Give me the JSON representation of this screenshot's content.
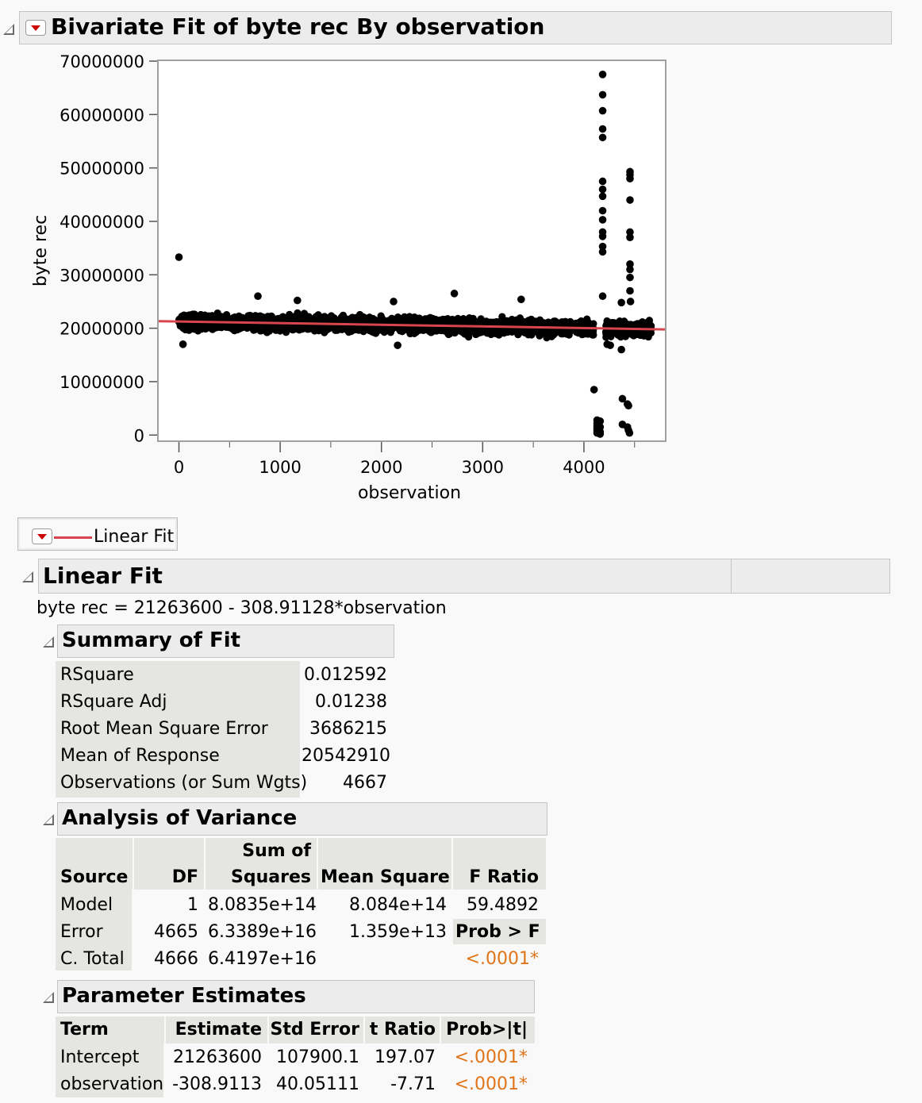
{
  "report": {
    "title": "Bivariate Fit of byte rec By observation",
    "legend_label": "Linear Fit",
    "fit_line_color": "#d9454f"
  },
  "chart_data": {
    "type": "scatter",
    "xlabel": "observation",
    "ylabel": "byte rec",
    "xlim": [
      -200,
      4800
    ],
    "ylim": [
      -1000000,
      70000000
    ],
    "xticks": [
      "0",
      "1000",
      "2000",
      "3000",
      "4000"
    ],
    "xtick_values": [
      0,
      1000,
      2000,
      3000,
      4000
    ],
    "yticks": [
      "0",
      "10000000",
      "20000000",
      "30000000",
      "40000000",
      "50000000",
      "60000000",
      "70000000"
    ],
    "ytick_values": [
      0,
      10000000,
      20000000,
      30000000,
      40000000,
      50000000,
      60000000,
      70000000
    ],
    "n_points": 4667,
    "band": {
      "x_from": 0,
      "x_to": 4667,
      "y_low": 18000000,
      "y_high": 23500000
    },
    "fit": {
      "intercept": 21263600,
      "slope": -308.91128
    },
    "outliers": [
      {
        "x": 0,
        "y": 33300000
      },
      {
        "x": 40,
        "y": 17000000
      },
      {
        "x": 780,
        "y": 26000000
      },
      {
        "x": 1170,
        "y": 25200000
      },
      {
        "x": 2120,
        "y": 25000000
      },
      {
        "x": 2160,
        "y": 16800000
      },
      {
        "x": 2720,
        "y": 26500000
      },
      {
        "x": 3380,
        "y": 25400000
      },
      {
        "x": 4100,
        "y": 8500000
      },
      {
        "x": 4130,
        "y": 2800000
      },
      {
        "x": 4130,
        "y": 2200000
      },
      {
        "x": 4130,
        "y": 1700000
      },
      {
        "x": 4130,
        "y": 1200000
      },
      {
        "x": 4130,
        "y": 800000
      },
      {
        "x": 4130,
        "y": 400000
      },
      {
        "x": 4160,
        "y": 2600000
      },
      {
        "x": 4160,
        "y": 1500000
      },
      {
        "x": 4160,
        "y": 600000
      },
      {
        "x": 4160,
        "y": 200000
      },
      {
        "x": 4185,
        "y": 67500000
      },
      {
        "x": 4185,
        "y": 63700000
      },
      {
        "x": 4185,
        "y": 60700000
      },
      {
        "x": 4185,
        "y": 57300000
      },
      {
        "x": 4185,
        "y": 55700000
      },
      {
        "x": 4185,
        "y": 47500000
      },
      {
        "x": 4185,
        "y": 46000000
      },
      {
        "x": 4185,
        "y": 44700000
      },
      {
        "x": 4185,
        "y": 42000000
      },
      {
        "x": 4185,
        "y": 40300000
      },
      {
        "x": 4185,
        "y": 38000000
      },
      {
        "x": 4185,
        "y": 37200000
      },
      {
        "x": 4185,
        "y": 35300000
      },
      {
        "x": 4185,
        "y": 34300000
      },
      {
        "x": 4185,
        "y": 26000000
      },
      {
        "x": 4370,
        "y": 16000000
      },
      {
        "x": 4370,
        "y": 24800000
      },
      {
        "x": 4380,
        "y": 6800000
      },
      {
        "x": 4380,
        "y": 2000000
      },
      {
        "x": 4430,
        "y": 5800000
      },
      {
        "x": 4440,
        "y": 5500000
      },
      {
        "x": 4430,
        "y": 1500000
      },
      {
        "x": 4440,
        "y": 900000
      },
      {
        "x": 4450,
        "y": 400000
      },
      {
        "x": 4455,
        "y": 49300000
      },
      {
        "x": 4455,
        "y": 48700000
      },
      {
        "x": 4455,
        "y": 48000000
      },
      {
        "x": 4455,
        "y": 44000000
      },
      {
        "x": 4455,
        "y": 38000000
      },
      {
        "x": 4455,
        "y": 37000000
      },
      {
        "x": 4455,
        "y": 32000000
      },
      {
        "x": 4455,
        "y": 31000000
      },
      {
        "x": 4455,
        "y": 29500000
      },
      {
        "x": 4455,
        "y": 27000000
      },
      {
        "x": 4460,
        "y": 25000000
      },
      {
        "x": 4230,
        "y": 17000000
      },
      {
        "x": 4260,
        "y": 16800000
      }
    ]
  },
  "linear_fit": {
    "title": "Linear Fit",
    "equation": "byte rec = 21263600 - 308.91128*observation"
  },
  "summary_of_fit": {
    "title": "Summary of Fit",
    "rows": [
      {
        "label": "RSquare",
        "value": "0.012592"
      },
      {
        "label": "RSquare Adj",
        "value": "0.01238"
      },
      {
        "label": "Root Mean Square Error",
        "value": "3686215"
      },
      {
        "label": "Mean of Response",
        "value": "20542910"
      },
      {
        "label": "Observations (or Sum Wgts)",
        "value": "4667"
      }
    ]
  },
  "anova": {
    "title": "Analysis of Variance",
    "headers": {
      "source": "Source",
      "df": "DF",
      "ss_top": "Sum of",
      "ss_bottom": "Squares",
      "ms": "Mean Square",
      "f": "F Ratio"
    },
    "rows": [
      {
        "source": "Model",
        "df": "1",
        "ss": "8.0835e+14",
        "ms": "8.084e+14",
        "f": "59.4892"
      },
      {
        "source": "Error",
        "df": "4665",
        "ss": "6.3389e+16",
        "ms": "1.359e+13",
        "f": "Prob > F"
      },
      {
        "source": "C. Total",
        "df": "4666",
        "ss": "6.4197e+16",
        "ms": "",
        "f": "<.0001*"
      }
    ]
  },
  "parameter_estimates": {
    "title": "Parameter Estimates",
    "headers": {
      "term": "Term",
      "estimate": "Estimate",
      "std_error": "Std Error",
      "t_ratio": "t Ratio",
      "prob": "Prob>|t|"
    },
    "rows": [
      {
        "term": "Intercept",
        "estimate": "21263600",
        "std_error": "107900.1",
        "t_ratio": "197.07",
        "prob": "<.0001*"
      },
      {
        "term": "observation",
        "estimate": "-308.9113",
        "std_error": "40.05111",
        "t_ratio": "-7.71",
        "prob": "<.0001*"
      }
    ]
  }
}
